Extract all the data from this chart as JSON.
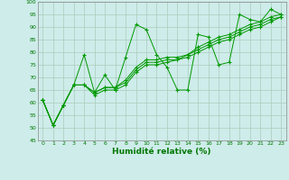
{
  "xlabel": "Humidité relative (%)",
  "background_color": "#ceecea",
  "grid_color": "#aaccbb",
  "line_color": "#009900",
  "xlim": [
    -0.5,
    23.5
  ],
  "ylim": [
    45,
    100
  ],
  "xticks": [
    0,
    1,
    2,
    3,
    4,
    5,
    6,
    7,
    8,
    9,
    10,
    11,
    12,
    13,
    14,
    15,
    16,
    17,
    18,
    19,
    20,
    21,
    22,
    23
  ],
  "yticks": [
    45,
    50,
    55,
    60,
    65,
    70,
    75,
    80,
    85,
    90,
    95,
    100
  ],
  "lines": [
    [
      61,
      51,
      59,
      67,
      79,
      64,
      71,
      65,
      78,
      91,
      89,
      79,
      74,
      65,
      65,
      87,
      86,
      75,
      76,
      95,
      93,
      92,
      97,
      95
    ],
    [
      61,
      51,
      59,
      67,
      67,
      63,
      65,
      65,
      67,
      72,
      75,
      75,
      76,
      77,
      78,
      80,
      82,
      84,
      85,
      87,
      89,
      90,
      92,
      94
    ],
    [
      61,
      51,
      59,
      67,
      67,
      64,
      66,
      66,
      68,
      73,
      76,
      76,
      77,
      77,
      79,
      81,
      83,
      85,
      86,
      88,
      90,
      91,
      93,
      94
    ],
    [
      61,
      51,
      59,
      67,
      67,
      64,
      66,
      66,
      69,
      74,
      77,
      77,
      78,
      78,
      79,
      82,
      84,
      86,
      87,
      89,
      91,
      92,
      94,
      95
    ]
  ]
}
